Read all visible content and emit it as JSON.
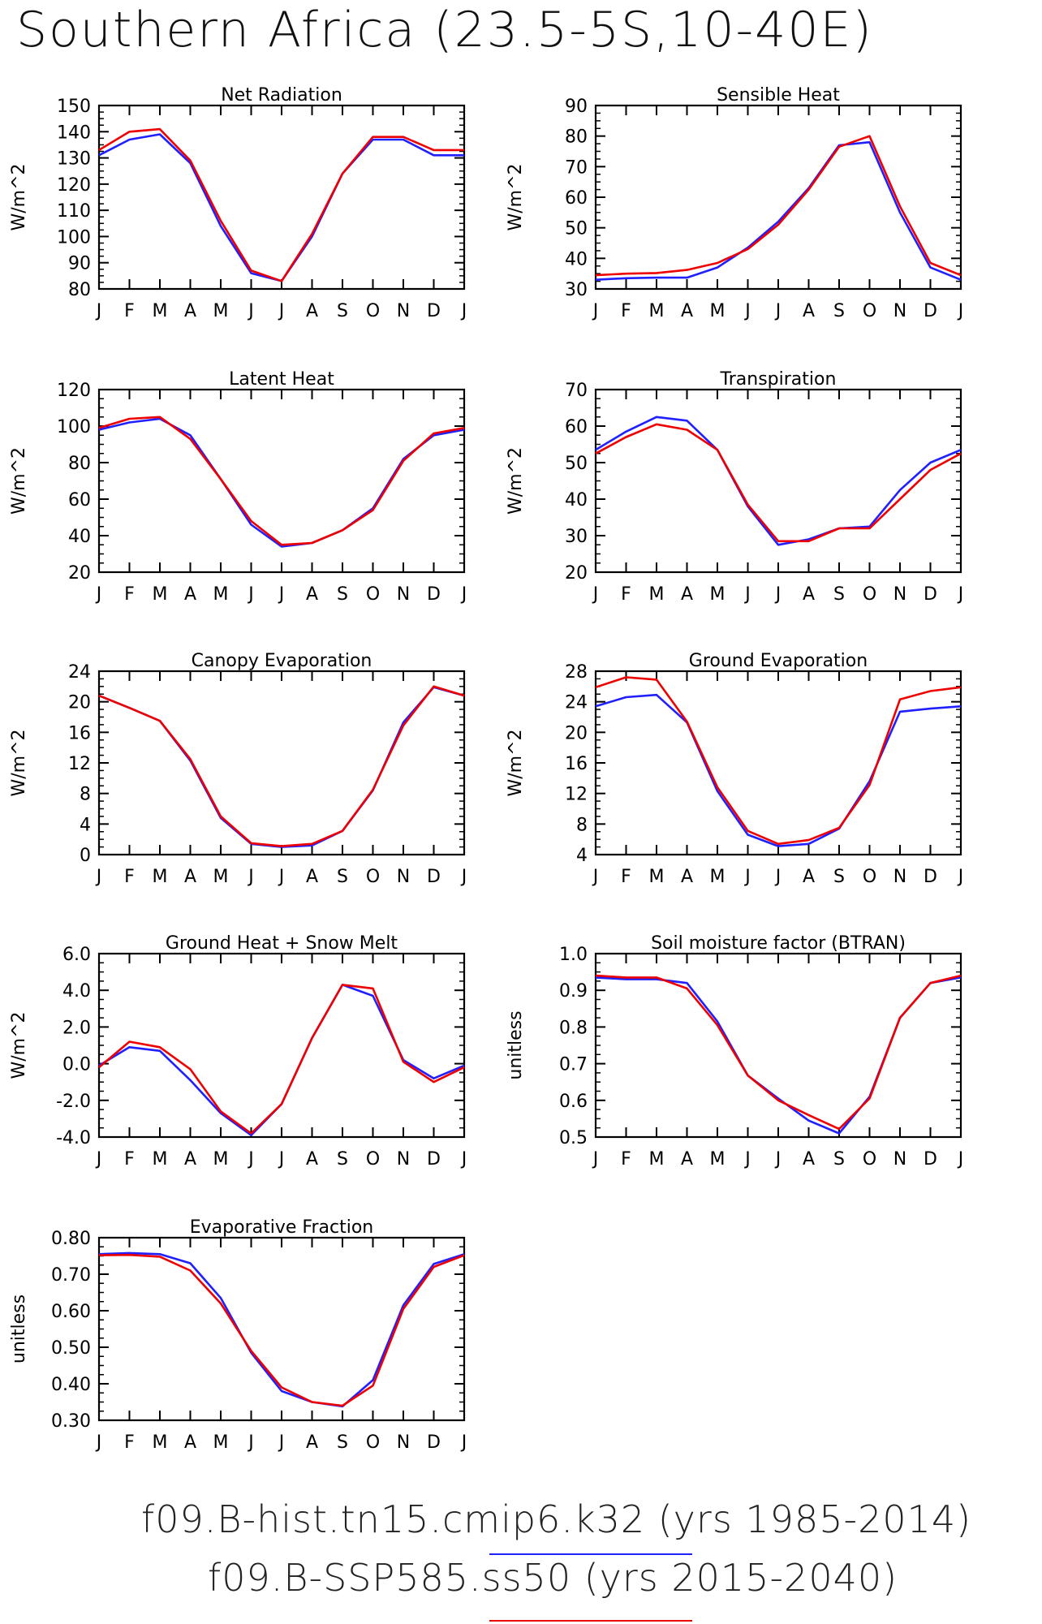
{
  "title": "Southern Africa (23.5-5S,10-40E)",
  "months": [
    "J",
    "F",
    "M",
    "A",
    "M",
    "J",
    "J",
    "A",
    "S",
    "O",
    "N",
    "D",
    "J"
  ],
  "colors": {
    "case1": "#2020ff",
    "case2": "#ee0000",
    "axis": "#000000"
  },
  "cases": [
    {
      "label": "f09.B-hist.tn15.cmip6.k32 (yrs 1985-2014)",
      "color": "#2020ff"
    },
    {
      "label": "f09.B-SSP585.ss50 (yrs 2015-2040)",
      "color": "#ee0000"
    }
  ],
  "chart_data": [
    {
      "type": "line",
      "title": "Net Radiation",
      "ylabel": "W/m^2",
      "ylim": [
        80,
        150
      ],
      "yticks": [
        "80",
        "90",
        "100",
        "110",
        "120",
        "130",
        "140",
        "150"
      ],
      "series": [
        {
          "values": [
            131,
            137,
            139,
            128,
            104,
            86,
            83,
            100,
            124,
            137,
            137,
            131,
            131
          ]
        },
        {
          "values": [
            133,
            140,
            141,
            129,
            106,
            87,
            83,
            101,
            124,
            138,
            138,
            133,
            133
          ]
        }
      ]
    },
    {
      "type": "line",
      "title": "Sensible Heat",
      "ylabel": "W/m^2",
      "ylim": [
        30,
        90
      ],
      "yticks": [
        "30",
        "40",
        "50",
        "60",
        "70",
        "80",
        "90"
      ],
      "series": [
        {
          "values": [
            33,
            33.5,
            33.7,
            33.7,
            37,
            43.5,
            52,
            63,
            77,
            78,
            55,
            37,
            33
          ]
        },
        {
          "values": [
            34.5,
            35,
            35.2,
            36.2,
            38.5,
            43,
            51,
            62.5,
            76.5,
            80,
            57,
            38.5,
            34.5
          ]
        }
      ]
    },
    {
      "type": "line",
      "title": "Latent Heat",
      "ylabel": "W/m^2",
      "ylim": [
        20,
        120
      ],
      "yticks": [
        "20",
        "40",
        "60",
        "80",
        "100",
        "120"
      ],
      "series": [
        {
          "values": [
            98,
            102,
            104,
            95,
            71,
            46,
            34,
            36,
            43,
            55,
            82,
            95,
            98
          ]
        },
        {
          "values": [
            99,
            104,
            105,
            93,
            71,
            48,
            35,
            36,
            43,
            54,
            81,
            96,
            99
          ]
        }
      ]
    },
    {
      "type": "line",
      "title": "Transpiration",
      "ylabel": "W/m^2",
      "ylim": [
        20,
        70
      ],
      "yticks": [
        "20",
        "30",
        "40",
        "50",
        "60",
        "70"
      ],
      "series": [
        {
          "values": [
            53.5,
            58.5,
            62.5,
            61.5,
            53.5,
            38,
            27.5,
            29,
            32,
            32.5,
            42.5,
            50,
            53.5
          ]
        },
        {
          "values": [
            52.5,
            57,
            60.5,
            59,
            53.5,
            38.5,
            28.5,
            28.5,
            32,
            32,
            40,
            48,
            52.5
          ]
        }
      ]
    },
    {
      "type": "line",
      "title": "Canopy Evaporation",
      "ylabel": "W/m^2",
      "ylim": [
        0,
        24
      ],
      "yticks": [
        "0",
        "4",
        "8",
        "12",
        "16",
        "20",
        "24"
      ],
      "series": [
        {
          "values": [
            20.8,
            19.2,
            17.5,
            12.3,
            4.8,
            1.4,
            1.0,
            1.2,
            3.1,
            8.4,
            17.3,
            21.9,
            20.8
          ]
        },
        {
          "values": [
            20.8,
            19.2,
            17.5,
            12.5,
            5.0,
            1.5,
            1.1,
            1.4,
            3.1,
            8.5,
            16.9,
            22.0,
            20.8
          ]
        }
      ]
    },
    {
      "type": "line",
      "title": "Ground Evaporation",
      "ylabel": "W/m^2",
      "ylim": [
        4,
        28
      ],
      "yticks": [
        "4",
        "8",
        "12",
        "16",
        "20",
        "24",
        "28"
      ],
      "series": [
        {
          "values": [
            23.4,
            24.6,
            24.9,
            21.3,
            12.3,
            6.6,
            5.1,
            5.4,
            7.4,
            13.6,
            22.7,
            23.1,
            23.4
          ]
        },
        {
          "values": [
            25.9,
            27.2,
            26.9,
            21.4,
            12.8,
            7.1,
            5.4,
            5.9,
            7.5,
            13.1,
            24.3,
            25.4,
            25.9
          ]
        }
      ]
    },
    {
      "type": "line",
      "title": "Ground Heat + Snow Melt",
      "ylabel": "W/m^2",
      "ylim": [
        -4,
        6
      ],
      "yticks": [
        "-4.0",
        "-2.0",
        "0.0",
        "2.0",
        "4.0",
        "6.0"
      ],
      "series": [
        {
          "values": [
            -0.1,
            0.9,
            0.7,
            -0.9,
            -2.7,
            -3.9,
            -2.2,
            1.4,
            4.3,
            3.7,
            0.2,
            -0.8,
            -0.1
          ]
        },
        {
          "values": [
            -0.2,
            1.2,
            0.9,
            -0.3,
            -2.6,
            -3.8,
            -2.2,
            1.4,
            4.3,
            4.1,
            0.1,
            -1.0,
            -0.2
          ]
        }
      ]
    },
    {
      "type": "line",
      "title": "Soil moisture factor (BTRAN)",
      "ylabel": "unitless",
      "ylim": [
        0.5,
        1.0
      ],
      "yticks": [
        "0.5",
        "0.6",
        "0.7",
        "0.8",
        "0.9",
        "1.0"
      ],
      "series": [
        {
          "values": [
            0.935,
            0.93,
            0.93,
            0.92,
            0.815,
            0.668,
            0.605,
            0.545,
            0.51,
            0.61,
            0.825,
            0.92,
            0.935
          ]
        },
        {
          "values": [
            0.94,
            0.935,
            0.935,
            0.905,
            0.805,
            0.668,
            0.6,
            0.56,
            0.522,
            0.605,
            0.825,
            0.92,
            0.94
          ]
        }
      ]
    },
    {
      "type": "line",
      "title": "Evaporative Fraction",
      "ylabel": "unitless",
      "ylim": [
        0.3,
        0.8
      ],
      "yticks": [
        "0.30",
        "0.40",
        "0.50",
        "0.60",
        "0.70",
        "0.80"
      ],
      "series": [
        {
          "values": [
            0.755,
            0.758,
            0.755,
            0.73,
            0.635,
            0.485,
            0.38,
            0.35,
            0.338,
            0.41,
            0.615,
            0.728,
            0.755
          ]
        },
        {
          "values": [
            0.752,
            0.753,
            0.748,
            0.71,
            0.62,
            0.49,
            0.39,
            0.35,
            0.34,
            0.395,
            0.605,
            0.72,
            0.752
          ]
        }
      ]
    }
  ]
}
